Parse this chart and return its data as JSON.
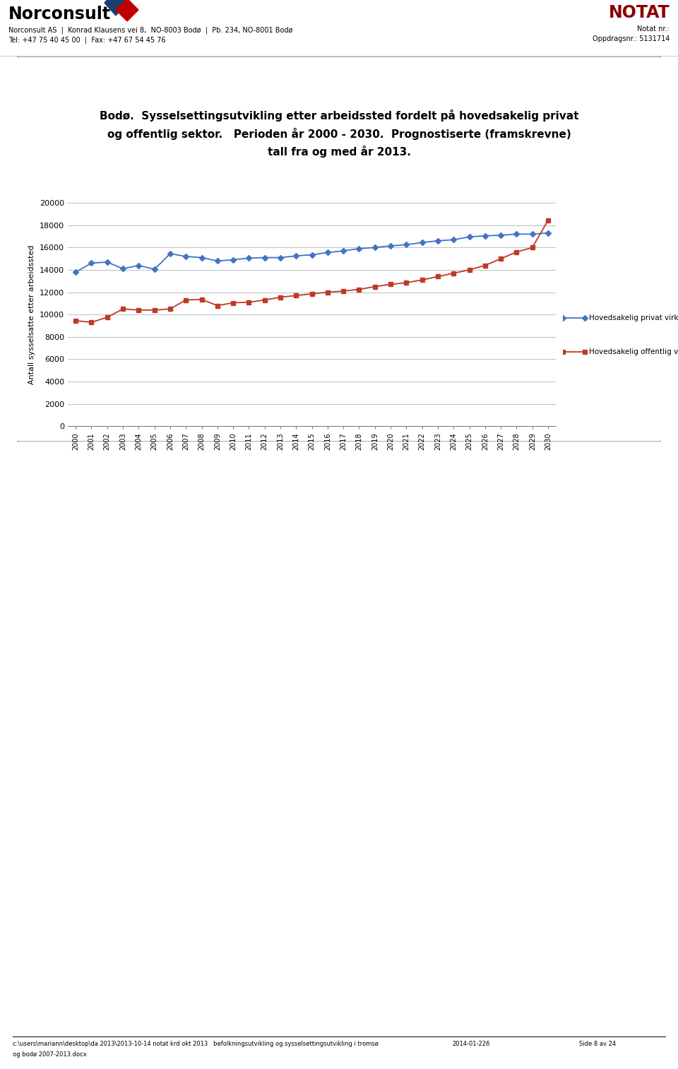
{
  "title_line1": "Bodø.  Sysselsettingsutvikling etter arbeidssted fordelt på hovedsakelig privat",
  "title_line2": "og offentlig sektor.   Perioden år 2000 - 2030.  Prognostiserte (framskrevne)",
  "title_line3": "tall fra og med år 2013.",
  "ylabel": "Antall sysselsatte etter arbeidssted",
  "years": [
    2000,
    2001,
    2002,
    2003,
    2004,
    2005,
    2006,
    2007,
    2008,
    2009,
    2010,
    2011,
    2012,
    2013,
    2014,
    2015,
    2016,
    2017,
    2018,
    2019,
    2020,
    2021,
    2022,
    2023,
    2024,
    2025,
    2026,
    2027,
    2028,
    2029,
    2030
  ],
  "privat": [
    13800,
    14600,
    14700,
    14100,
    14400,
    14050,
    15450,
    15200,
    15100,
    14800,
    14900,
    15050,
    15100,
    15100,
    15250,
    15350,
    15550,
    15700,
    15900,
    16000,
    16150,
    16250,
    16450,
    16600,
    16700,
    16950,
    17050,
    17100,
    17200,
    17200,
    17300
  ],
  "offentlig": [
    9450,
    9300,
    9750,
    10500,
    10400,
    10400,
    10500,
    11300,
    11350,
    10800,
    11050,
    11100,
    11300,
    11550,
    11700,
    11850,
    12000,
    12100,
    12250,
    12500,
    12700,
    12850,
    13100,
    13400,
    13700,
    14000,
    14400,
    15000,
    15600,
    16000,
    18450
  ],
  "privat_color": "#4472C4",
  "offentlig_color": "#C0392B",
  "ylim_min": 0,
  "ylim_max": 20000,
  "ytick_step": 2000,
  "grid_color": "#bfbfbf",
  "legend_privat": "Hovedsakelig privat virksomhet",
  "legend_offentlig": "Hovedsakelig offentlig virksomhet",
  "footer_text1": "c:\\users\\mariann\\desktop\\da 2013\\2013-10-14 notat krd okt 2013   befolkningsutvikling og sysselsettingsutvikling i tromsø",
  "footer_text2": "og bodø 2007-2013.docx",
  "footer_date": "2014-01-226",
  "footer_page": "Side 8 av 24",
  "notat_nr": "Notat nr.:",
  "oppdragsnr": "Oppdragsnr.: 5131714",
  "notat_label": "NOTAT",
  "org_line1": "Norconsult AS  |  Konrad Klausens vei 8,  NO-8003 Bodø  |  Pb. 234, NO-8001 Bodø",
  "org_line2": "Tel: +47 75 40 45 00  |  Fax: +47 67 54 45 76",
  "norconsult_text": "Norconsult"
}
